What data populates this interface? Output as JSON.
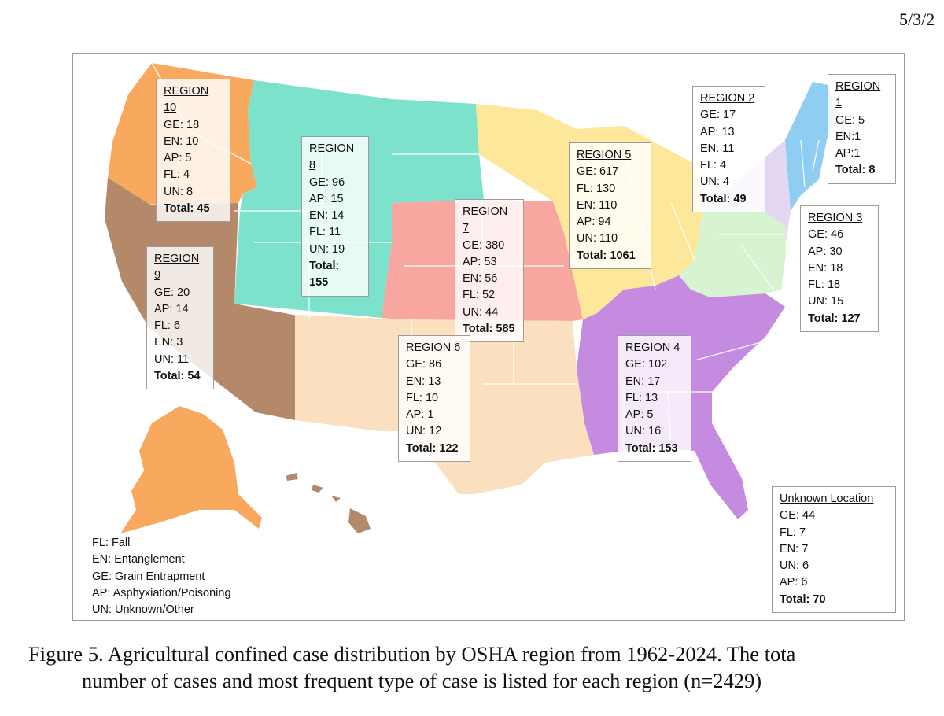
{
  "page": {
    "date": "5/3/2"
  },
  "regions": [
    {
      "id": "region10",
      "title": "REGION 10",
      "lines": [
        "GE: 18",
        "EN: 10",
        "AP: 5",
        "FL: 4",
        "UN: 8"
      ],
      "total": "Total: 45",
      "color": "#f8a95e"
    },
    {
      "id": "region8",
      "title": "REGION 8",
      "lines": [
        "GE: 96",
        "AP: 15",
        "EN: 14",
        "FL: 11",
        "UN: 19"
      ],
      "total": "Total: 155",
      "color": "#7de2cc"
    },
    {
      "id": "region9",
      "title": "REGION 9",
      "lines": [
        "GE: 20",
        "AP: 14",
        "FL: 6",
        "EN: 3",
        "UN: 11"
      ],
      "total": "Total: 54",
      "color": "#b3896a"
    },
    {
      "id": "region7",
      "title": "REGION 7",
      "lines": [
        "GE: 380",
        "AP: 53",
        "EN: 56",
        "FL: 52",
        "UN: 44"
      ],
      "total": "Total: 585",
      "color": "#f7a7a0"
    },
    {
      "id": "region6",
      "title": "REGION 6",
      "lines": [
        "GE: 86",
        "EN: 13",
        "FL: 10",
        "AP: 1",
        "UN: 12"
      ],
      "total": "Total: 122",
      "color": "#fbe0bf"
    },
    {
      "id": "region5",
      "title": "REGION 5",
      "lines": [
        "GE: 617",
        "FL: 130",
        "EN: 110",
        "AP: 94",
        "UN: 110"
      ],
      "total": "Total: 1061",
      "color": "#fde79a"
    },
    {
      "id": "region4",
      "title": "REGION 4",
      "lines": [
        "GE: 102",
        "EN: 17",
        "FL: 13",
        "AP: 5",
        "UN: 16"
      ],
      "total": "Total: 153",
      "color": "#c58be0"
    },
    {
      "id": "region2",
      "title": "REGION 2",
      "lines": [
        "GE: 17",
        "AP: 13",
        "EN: 11",
        "FL: 4",
        "UN: 4"
      ],
      "total": "Total: 49",
      "color": "#e3d7f4"
    },
    {
      "id": "region1",
      "title": "REGION 1",
      "lines": [
        "GE: 5",
        "EN:1",
        "AP:1"
      ],
      "total": "Total: 8",
      "color": "#8fcdf2"
    },
    {
      "id": "region3",
      "title": "REGION 3",
      "lines": [
        "GE: 46",
        "AP: 30",
        "EN: 18",
        "FL: 18",
        "UN: 15"
      ],
      "total": "Total: 127",
      "color": "#d8f3d0"
    },
    {
      "id": "unknown",
      "title": "Unknown Location",
      "lines": [
        "GE: 44",
        "FL: 7",
        "EN: 7",
        "UN: 6",
        "AP: 6"
      ],
      "total": "Total: 70",
      "color": "#ffffff"
    }
  ],
  "legend": [
    "FL: Fall",
    "EN: Entanglement",
    "GE: Grain Entrapment",
    "AP: Asphyxiation/Poisoning",
    "UN: Unknown/Other"
  ],
  "caption": {
    "line1": "Figure 5. Agricultural confined case distribution by OSHA region from 1962-2024. The tota",
    "line2": "number of cases and most frequent type of case is listed for each region (n=2429)"
  }
}
